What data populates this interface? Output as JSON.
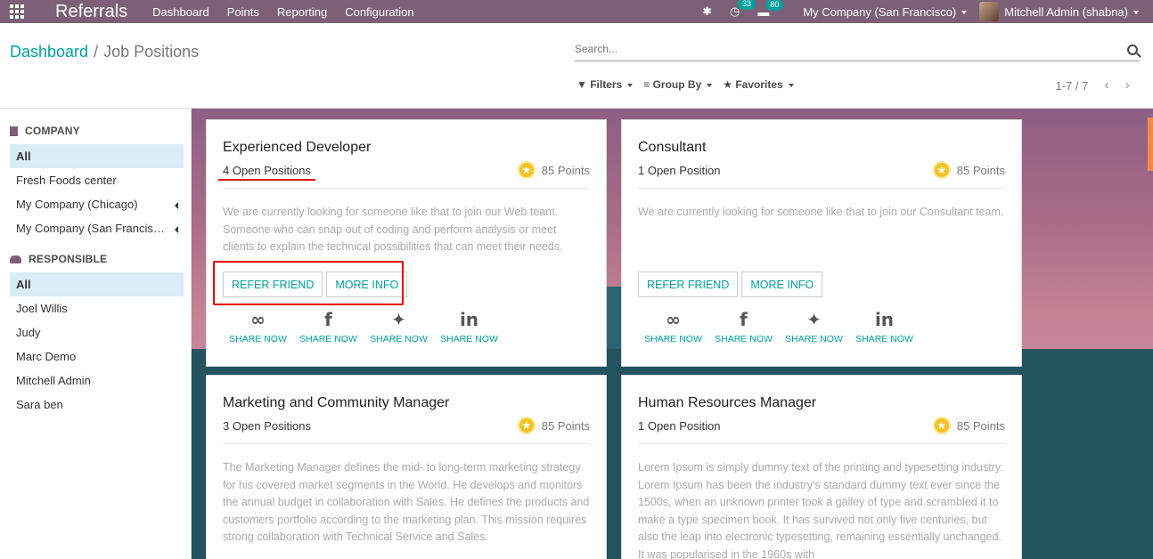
{
  "navbar": {
    "brand": "Referrals",
    "menu": [
      "Dashboard",
      "Points",
      "Reporting",
      "Configuration"
    ],
    "activity_count": "33",
    "message_count": "80",
    "company": "My Company (San Francisco)",
    "user": "Mitchell Admin (shabna)"
  },
  "breadcrumb": {
    "parent": "Dashboard",
    "separator": "/",
    "current": "Job Positions"
  },
  "search": {
    "placeholder": "Search..."
  },
  "filters": {
    "filters": "Filters",
    "group_by": "Group By",
    "favorites": "Favorites"
  },
  "pager": {
    "range": "1-7 / 7"
  },
  "sidebar": {
    "company_title": "COMPANY",
    "company_items": [
      {
        "label": "All",
        "active": true
      },
      {
        "label": "Fresh Foods center"
      },
      {
        "label": "My Company (Chicago)",
        "expandable": true
      },
      {
        "label": "My Company (San Francis…",
        "expandable": true
      }
    ],
    "responsible_title": "RESPONSIBLE",
    "responsible_items": [
      {
        "label": "All",
        "active": true
      },
      {
        "label": "Joel Willis"
      },
      {
        "label": "Judy"
      },
      {
        "label": "Marc Demo"
      },
      {
        "label": "Mitchell Admin"
      },
      {
        "label": "Sara ben"
      }
    ]
  },
  "share_labels": {
    "link": "SHARE NOW",
    "facebook": "SHARE NOW",
    "twitter": "SHARE NOW",
    "linkedin": "SHARE NOW"
  },
  "buttons": {
    "refer": "REFER FRIEND",
    "more": "MORE INFO"
  },
  "cards": [
    {
      "title": "Experienced Developer",
      "open": "4 Open Positions",
      "points": "85 Points",
      "description": "We are currently looking for someone like that to join our Web team. Someone who can snap out of coding and perform analysis or meet clients to explain the technical possibilities that can meet their needs."
    },
    {
      "title": "Consultant",
      "open": "1 Open Position",
      "points": "85 Points",
      "description": "We are currently looking for someone like that to join our Consultant team."
    },
    {
      "title": "Marketing and Community Manager",
      "open": "3 Open Positions",
      "points": "85 Points",
      "description": "The Marketing Manager defines the mid- to long-term marketing strategy for his covered market segments in the World. He develops and monitors the annual budget in collaboration with Sales. He defines the products and customers portfolio according to the marketing plan. This mission requires strong collaboration with Technical Service and Sales."
    },
    {
      "title": "Human Resources Manager",
      "open": "1 Open Position",
      "points": "85 Points",
      "description": "Lorem Ipsum is simply dummy text of the printing and typesetting industry. Lorem Ipsum has been the industry's standard dummy text ever since the 1500s, when an unknown printer took a galley of type and scrambled it to make a type specimen book. It has survived not only five centuries, but also the leap into electronic typesetting, remaining essentially unchanged. It was popularised in the 1960s with"
    }
  ],
  "annotation_color": "#e5000b",
  "accent_color": "#00a09d",
  "navbar_color": "#7c6078"
}
